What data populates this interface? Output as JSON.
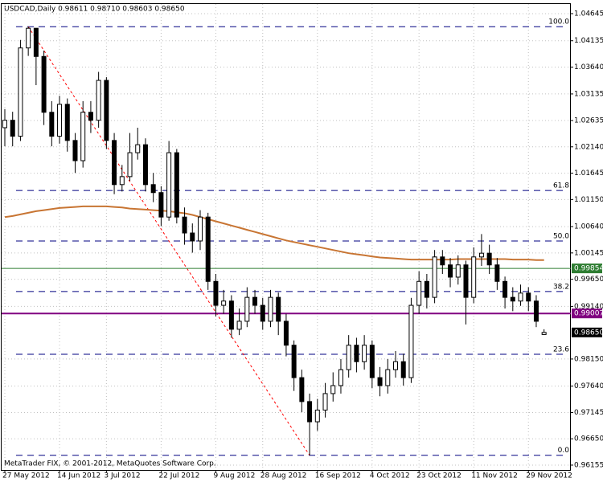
{
  "chart_data": {
    "type": "candlestick",
    "title": "USDCAD,Daily  0.98611 0.98710 0.98603 0.98650",
    "footer": "MetaTrader FIX, © 2001-2012, MetaQuotes Software Corp.",
    "categories": [
      "27 May 2012",
      null,
      null,
      null,
      null,
      null,
      null,
      "14 Jun 2012",
      null,
      null,
      null,
      null,
      null,
      "3 Jul 2012",
      null,
      null,
      null,
      null,
      null,
      null,
      "22 Jul 2012",
      null,
      null,
      null,
      null,
      null,
      null,
      "9 Aug 2012",
      null,
      null,
      null,
      null,
      null,
      "28 Aug 2012",
      null,
      null,
      null,
      null,
      null,
      null,
      "16 Sep 2012",
      null,
      null,
      null,
      null,
      null,
      null,
      "4 Oct 2012",
      null,
      null,
      null,
      null,
      null,
      "23 Oct 2012",
      null,
      null,
      null,
      null,
      null,
      null,
      "11 Nov 2012",
      null,
      null,
      null,
      null,
      null,
      null,
      "29 Nov 2012",
      null,
      null
    ],
    "open": [
      1.025,
      1.0264,
      1.0234,
      1.04,
      1.0437,
      1.0384,
      1.0279,
      1.0234,
      1.0294,
      1.0226,
      1.0188,
      1.0279,
      1.0264,
      1.0339,
      1.0226,
      1.0143,
      1.0158,
      1.0203,
      1.0218,
      1.0143,
      1.0128,
      1.0082,
      1.0203,
      1.0082,
      1.0052,
      1.0037,
      1.0082,
      0.9961,
      0.9916,
      0.9924,
      0.9871,
      0.9886,
      0.9931,
      0.9916,
      0.9886,
      0.9931,
      0.9886,
      0.9841,
      0.978,
      0.9735,
      0.9697,
      0.9719,
      0.975,
      0.9765,
      0.9795,
      0.9841,
      0.981,
      0.9841,
      0.978,
      0.9765,
      0.9795,
      0.981,
      0.978,
      0.9916,
      0.9961,
      0.9931,
      1.0007,
      0.9992,
      0.9969,
      0.9992,
      0.9931,
      1.0007,
      1.0014,
      0.9992,
      0.9961,
      0.9931,
      0.9924,
      0.9939,
      0.9924,
      0.98611
    ],
    "high": [
      1.0285,
      1.028,
      1.0415,
      1.044,
      1.043,
      1.0395,
      1.03,
      1.031,
      1.0305,
      1.024,
      1.03,
      1.03,
      1.0355,
      1.0345,
      1.024,
      1.018,
      1.024,
      1.025,
      1.023,
      1.0165,
      1.014,
      1.0225,
      1.021,
      1.01,
      1.007,
      1.0095,
      1.009,
      0.9975,
      0.9945,
      0.9935,
      0.991,
      0.995,
      0.9945,
      0.993,
      0.9945,
      0.994,
      0.99,
      0.985,
      0.9795,
      0.975,
      0.974,
      0.977,
      0.979,
      0.9815,
      0.986,
      0.9855,
      0.986,
      0.985,
      0.98,
      0.9815,
      0.983,
      0.9825,
      0.993,
      0.998,
      0.9975,
      1.002,
      1.002,
      1.0005,
      1.001,
      1.0,
      1.0025,
      1.005,
      1.003,
      1.0005,
      0.997,
      0.995,
      0.9955,
      0.995,
      0.9935,
      0.9871
    ],
    "low": [
      1.0215,
      1.0215,
      1.0225,
      1.0385,
      1.033,
      1.0255,
      1.0215,
      1.022,
      1.0205,
      1.0165,
      1.0175,
      1.024,
      1.025,
      1.021,
      1.0125,
      1.013,
      1.015,
      1.019,
      1.013,
      1.011,
      1.0065,
      1.0075,
      1.007,
      1.003,
      1.0015,
      1.002,
      0.9945,
      0.9895,
      0.99,
      0.9855,
      0.986,
      0.9875,
      0.99,
      0.987,
      0.9875,
      0.986,
      0.982,
      0.9755,
      0.9715,
      0.9634,
      0.968,
      0.9705,
      0.9735,
      0.975,
      0.978,
      0.979,
      0.9795,
      0.976,
      0.9745,
      0.975,
      0.978,
      0.9765,
      0.977,
      0.99,
      0.991,
      0.992,
      0.9975,
      0.995,
      0.9955,
      0.988,
      0.992,
      0.999,
      0.9975,
      0.9945,
      0.991,
      0.9905,
      0.9915,
      0.9905,
      0.9875,
      0.98603
    ],
    "close": [
      1.0264,
      1.0234,
      1.04,
      1.0437,
      1.0384,
      1.0279,
      1.0234,
      1.0294,
      1.0226,
      1.0188,
      1.0279,
      1.0264,
      1.0339,
      1.0226,
      1.0143,
      1.0158,
      1.0203,
      1.0218,
      1.0143,
      1.0128,
      1.0082,
      1.0203,
      1.0082,
      1.0052,
      1.0037,
      1.0082,
      0.9961,
      0.9916,
      0.9924,
      0.9871,
      0.9886,
      0.9931,
      0.9916,
      0.9886,
      0.9931,
      0.9886,
      0.9841,
      0.978,
      0.9735,
      0.9697,
      0.9719,
      0.975,
      0.9765,
      0.9795,
      0.9841,
      0.981,
      0.9841,
      0.978,
      0.9765,
      0.9795,
      0.981,
      0.978,
      0.9916,
      0.9961,
      0.9931,
      1.0007,
      0.9992,
      0.9969,
      0.9992,
      0.9931,
      1.0007,
      1.0014,
      0.9992,
      0.9961,
      0.9931,
      0.9924,
      0.9939,
      0.9924,
      0.9886,
      0.9865
    ],
    "moving_average": {
      "color": "#c87533",
      "values": [
        1.0082,
        1.0084,
        1.0087,
        1.009,
        1.0093,
        1.0095,
        1.0097,
        1.0099,
        1.01,
        1.0101,
        1.0102,
        1.0102,
        1.0102,
        1.0102,
        1.0101,
        1.01,
        1.0098,
        1.0097,
        1.0096,
        1.0095,
        1.0094,
        1.0093,
        1.0091,
        1.0089,
        1.0086,
        1.0082,
        1.0078,
        1.0074,
        1.007,
        1.0066,
        1.0062,
        1.0058,
        1.0054,
        1.005,
        1.0046,
        1.0042,
        1.0038,
        1.0035,
        1.0032,
        1.0029,
        1.0026,
        1.0023,
        1.002,
        1.0017,
        1.0014,
        1.0012,
        1.001,
        1.0008,
        1.0006,
        1.0005,
        1.0004,
        1.0003,
        1.0002,
        1.0002,
        1.0002,
        1.0002,
        1.0002,
        1.0002,
        1.0003,
        1.0003,
        1.0003,
        1.0003,
        1.0003,
        1.0003,
        1.0003,
        1.0002,
        1.0002,
        1.0002,
        1.0001,
        1.0001
      ]
    },
    "ylim": [
      0.96064,
      1.04826
    ],
    "yticks": [
      1.04645,
      1.04135,
      {
        "value": 1.0364,
        "label": "1.03640"
      },
      1.03135,
      1.02635,
      {
        "value": 1.0214,
        "label": "1.02140"
      },
      1.01645,
      {
        "value": 1.0115,
        "label": "1.01150"
      },
      {
        "value": 1.0064,
        "label": "1.00640"
      },
      1.00145,
      {
        "value": 0.9965,
        "label": "0.99650"
      },
      {
        "value": 0.9914,
        "label": "0.99140"
      },
      {
        "value": 0.9815,
        "label": "0.98150"
      },
      {
        "value": 0.9764,
        "label": "0.97640"
      },
      0.97145,
      {
        "value": 0.9665,
        "label": "0.96650"
      },
      0.96155
    ],
    "grid": true,
    "fib_levels": [
      {
        "label": "100.0",
        "value": 1.044
      },
      {
        "label": "61.8",
        "value": 1.0132
      },
      {
        "label": "50.0",
        "value": 1.0037
      },
      {
        "label": "38.2",
        "value": 0.9942
      },
      {
        "label": "23.6",
        "value": 0.9824
      },
      {
        "label": "0.0",
        "value": 0.9634
      }
    ],
    "price_lines": [
      {
        "label": "0.99854",
        "value": 0.99854,
        "color": "#2e7d32",
        "line": true
      },
      {
        "label": "0.99007",
        "value": 0.99007,
        "color": "#800080",
        "line": true
      },
      {
        "label": "0.98650",
        "value": 0.9865,
        "color": "#000000",
        "line": false
      }
    ]
  }
}
